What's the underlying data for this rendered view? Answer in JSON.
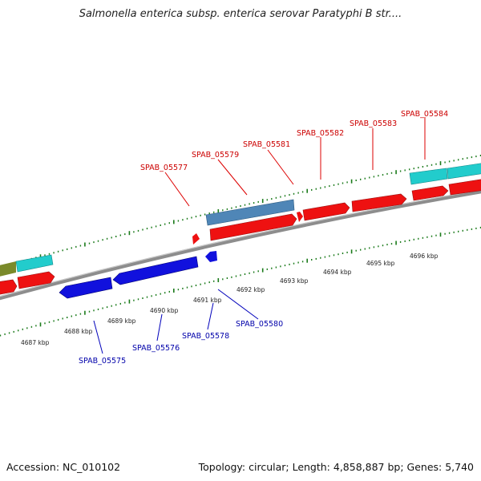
{
  "title": "Salmonella enterica subsp. enterica serovar Paratyphi B str....",
  "footer": {
    "accession": "Accession: NC_010102",
    "summary": "Topology: circular; Length: 4,858,887 bp; Genes: 5,740"
  },
  "colors": {
    "forward_gene": "#ee1111",
    "reverse_gene": "#1111cc",
    "cds_blue": "#4f86b7",
    "cds_cyan": "#22cccc",
    "olive": "#7a8a2a",
    "backbone": "#9a9a9a",
    "tick": "#1a7a1a",
    "label_forward": "#cc0000",
    "label_reverse": "#0000aa"
  },
  "kbp_labels": [
    "4687 kbp",
    "4688 kbp",
    "4689 kbp",
    "4690 kbp",
    "4691 kbp",
    "4692 kbp",
    "4693 kbp",
    "4694 kbp",
    "4695 kbp",
    "4696 kbp"
  ],
  "forward_genes": [
    "SPAB_05577",
    "SPAB_05579",
    "SPAB_05581",
    "SPAB_05582",
    "SPAB_05583",
    "SPAB_05584"
  ],
  "reverse_genes": [
    "SPAB_05575",
    "SPAB_05576",
    "SPAB_05578",
    "SPAB_05580"
  ]
}
